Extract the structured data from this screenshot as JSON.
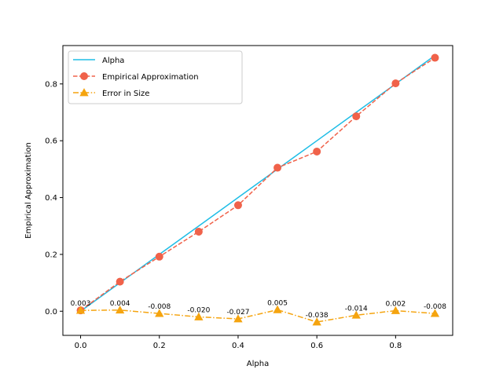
{
  "chart_data": {
    "type": "line",
    "title": "",
    "xlabel": "Alpha",
    "ylabel": "Empirical Approximation",
    "xlim": [
      -0.045,
      0.945
    ],
    "ylim": [
      -0.085,
      0.935
    ],
    "xticks": [
      0.0,
      0.2,
      0.4,
      0.6,
      0.8
    ],
    "xtick_labels": [
      "0.0",
      "0.2",
      "0.4",
      "0.6",
      "0.8"
    ],
    "yticks": [
      0.0,
      0.2,
      0.4,
      0.6,
      0.8
    ],
    "ytick_labels": [
      "0.0",
      "0.2",
      "0.4",
      "0.6",
      "0.8"
    ],
    "grid": false,
    "legend_position": "top-left",
    "x": [
      0.0,
      0.1,
      0.2,
      0.3,
      0.4,
      0.5,
      0.6,
      0.7,
      0.8,
      0.9
    ],
    "series": [
      {
        "name": "Alpha",
        "values": [
          0.0,
          0.1,
          0.2,
          0.3,
          0.4,
          0.5,
          0.6,
          0.7,
          0.8,
          0.9
        ],
        "color": "#1ebde6",
        "line_style": "solid",
        "marker": "none"
      },
      {
        "name": "Empirical Approximation",
        "values": [
          0.003,
          0.104,
          0.192,
          0.28,
          0.373,
          0.505,
          0.562,
          0.686,
          0.802,
          0.892
        ],
        "color": "#f0624a",
        "line_style": "dashed",
        "marker": "circle"
      },
      {
        "name": "Error in Size",
        "values": [
          0.003,
          0.004,
          -0.008,
          -0.02,
          -0.027,
          0.005,
          -0.038,
          -0.014,
          0.002,
          -0.008
        ],
        "color": "#f5a40f",
        "line_style": "dashdot",
        "marker": "triangle"
      }
    ],
    "annotations": [
      "0.003",
      "0.004",
      "-0.008",
      "-0.020",
      "-0.027",
      "0.005",
      "-0.038",
      "-0.014",
      "0.002",
      "-0.008"
    ]
  }
}
